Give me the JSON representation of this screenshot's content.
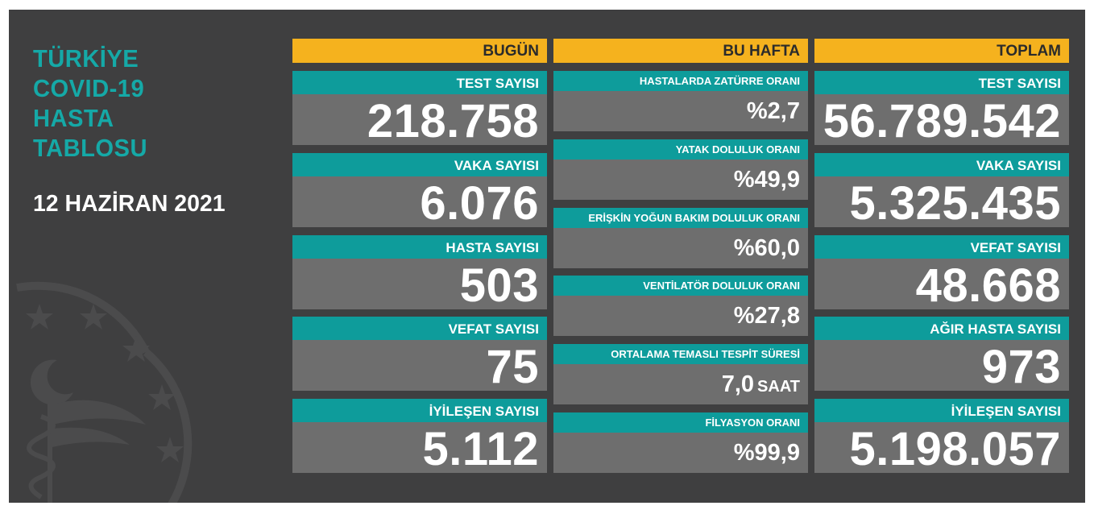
{
  "header": {
    "title_lines": [
      "TÜRKİYE",
      "COVID-19",
      "HASTA",
      "TABLOSU"
    ],
    "date": "12 HAZİRAN 2021"
  },
  "today": {
    "heading": "BUGÜN",
    "stats": [
      {
        "label": "TEST SAYISI",
        "value": "218.758"
      },
      {
        "label": "VAKA SAYISI",
        "value": "6.076"
      },
      {
        "label": "HASTA SAYISI",
        "value": "503"
      },
      {
        "label": "VEFAT SAYISI",
        "value": "75"
      },
      {
        "label": "İYİLEŞEN SAYISI",
        "value": "5.112"
      }
    ]
  },
  "week": {
    "heading": "BU HAFTA",
    "stats": [
      {
        "label": "HASTALARDA ZATÜRRE ORANI",
        "value": "%2,7",
        "unit": ""
      },
      {
        "label": "YATAK DOLULUK ORANI",
        "value": "%49,9",
        "unit": ""
      },
      {
        "label": "ERİŞKİN YOĞUN BAKIM DOLULUK ORANI",
        "value": "%60,0",
        "unit": ""
      },
      {
        "label": "VENTİLATÖR DOLULUK ORANI",
        "value": "%27,8",
        "unit": ""
      },
      {
        "label": "ORTALAMA TEMASLI TESPİT SÜRESİ",
        "value": "7,0",
        "unit": "SAAT"
      },
      {
        "label": "FİLYASYON ORANI",
        "value": "%99,9",
        "unit": ""
      }
    ]
  },
  "total": {
    "heading": "TOPLAM",
    "stats": [
      {
        "label": "TEST SAYISI",
        "value": "56.789.542"
      },
      {
        "label": "VAKA SAYISI",
        "value": "5.325.435"
      },
      {
        "label": "VEFAT SAYISI",
        "value": "48.668"
      },
      {
        "label": "AĞIR HASTA SAYISI",
        "value": "973"
      },
      {
        "label": "İYİLEŞEN SAYISI",
        "value": "5.198.057"
      }
    ]
  },
  "colors": {
    "background": "#3f3f40",
    "header_yellow": "#f5b21e",
    "label_teal": "#0e9c9b",
    "value_gray": "#6e6e6e",
    "title_teal": "#15a9a7"
  },
  "icons": [
    "ministry-emblem-icon"
  ]
}
